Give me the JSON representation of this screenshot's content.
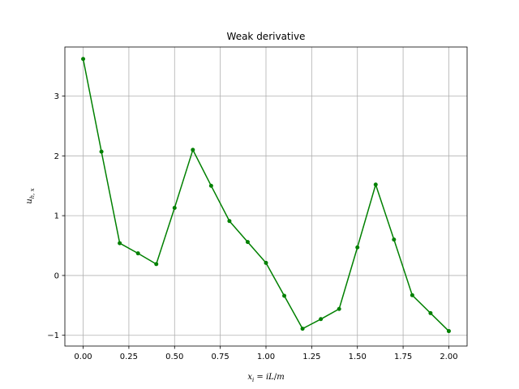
{
  "chart_data": {
    "type": "line",
    "title": "Weak derivative",
    "xlabel": "x_i = iL/m",
    "ylabel": "u_h,x",
    "xlim": [
      -0.1,
      2.1
    ],
    "ylim": [
      -1.18,
      3.82
    ],
    "xticks": [
      0.0,
      0.25,
      0.5,
      0.75,
      1.0,
      1.25,
      1.5,
      1.75,
      2.0
    ],
    "xtick_labels": [
      "0.00",
      "0.25",
      "0.50",
      "0.75",
      "1.00",
      "1.25",
      "1.50",
      "1.75",
      "2.00"
    ],
    "yticks": [
      -1,
      0,
      1,
      2,
      3
    ],
    "ytick_labels": [
      "−1",
      "0",
      "1",
      "2",
      "3"
    ],
    "grid": true,
    "series": [
      {
        "color": "#008000",
        "marker": "circle",
        "x": [
          0.0,
          0.1,
          0.2,
          0.3,
          0.4,
          0.5,
          0.6,
          0.7,
          0.8,
          0.9,
          1.0,
          1.1,
          1.2,
          1.3,
          1.4,
          1.5,
          1.6,
          1.7,
          1.8,
          1.9,
          2.0
        ],
        "y": [
          3.62,
          2.07,
          0.54,
          0.37,
          0.19,
          1.13,
          2.1,
          1.5,
          0.91,
          0.56,
          0.21,
          -0.34,
          -0.89,
          -0.73,
          -0.56,
          0.47,
          1.52,
          0.6,
          -0.33,
          -0.63,
          -0.93
        ]
      }
    ]
  }
}
